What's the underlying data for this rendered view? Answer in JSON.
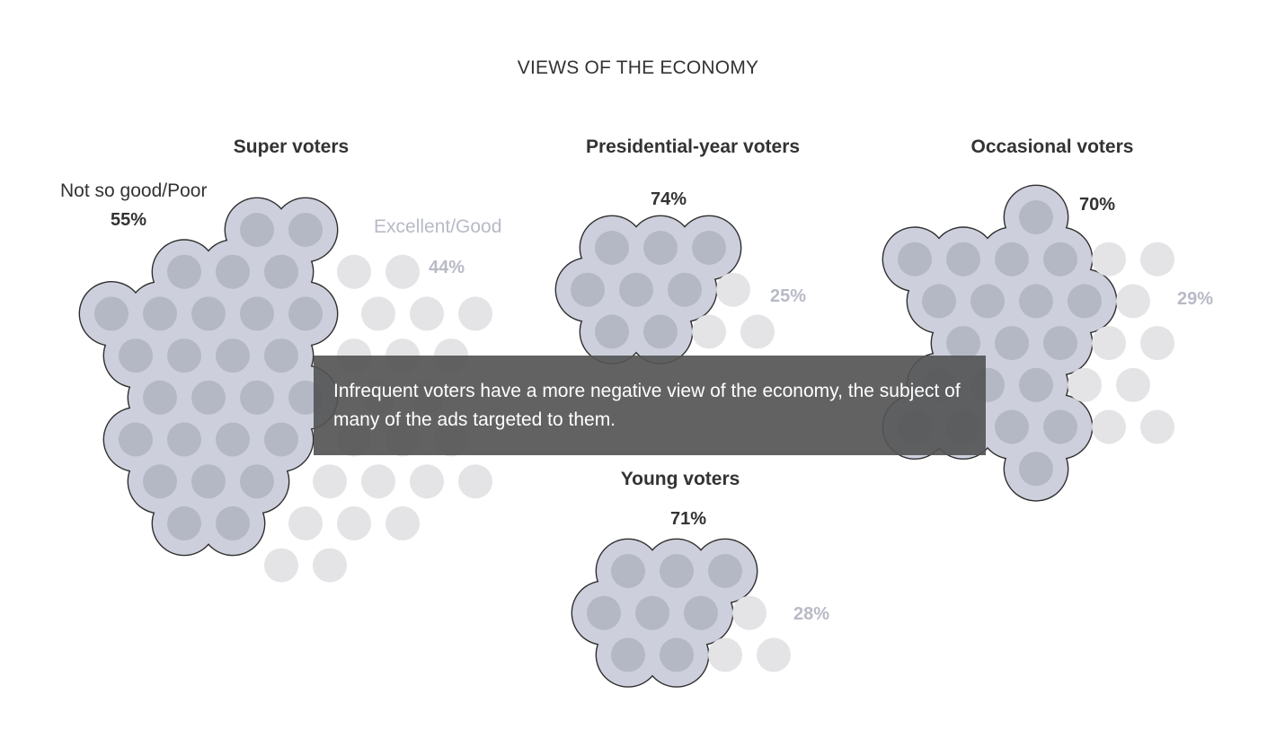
{
  "chart_data": {
    "type": "bubble-cluster",
    "title": "VIEWS OF THE ECONOMY",
    "categories": [
      "Not so good/Poor",
      "Excellent/Good"
    ],
    "groups": [
      {
        "name": "Super voters",
        "negative_pct": 55,
        "positive_pct": 44,
        "negative_label": "55%",
        "positive_label": "44%"
      },
      {
        "name": "Presidential-year voters",
        "negative_pct": 74,
        "positive_pct": 25,
        "negative_label": "74%",
        "positive_label": "25%"
      },
      {
        "name": "Occasional voters",
        "negative_pct": 70,
        "positive_pct": 29,
        "negative_label": "70%",
        "positive_label": "29%"
      },
      {
        "name": "Young voters",
        "negative_pct": 71,
        "positive_pct": 28,
        "negative_label": "71%",
        "positive_label": "28%"
      }
    ],
    "colors": {
      "negative_fill": "#b4b7c4",
      "negative_blob": "#cdd0dc",
      "negative_outline": "#2f2f2f",
      "positive_fill": "#e4e4e6"
    }
  },
  "annotation": "Infrequent voters have a more negative view of the economy, the subject of many of the ads targeted to them."
}
